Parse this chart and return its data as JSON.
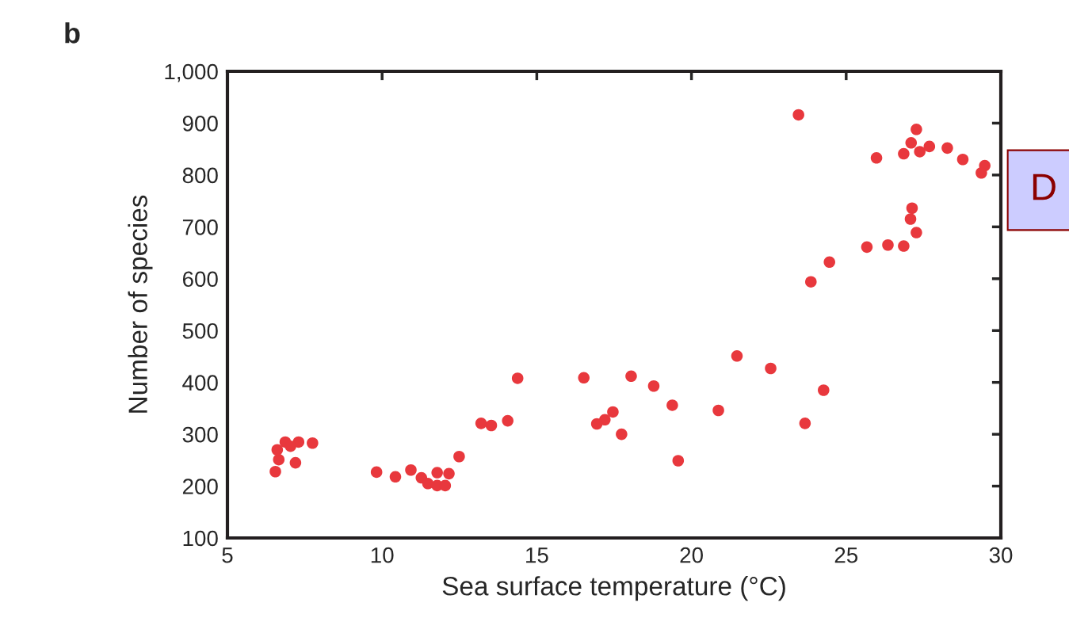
{
  "chart_data": {
    "type": "scatter",
    "title": "b",
    "xlabel": "Sea surface temperature (°C)",
    "ylabel": "Number of species",
    "x": [
      6.55,
      6.66,
      6.61,
      6.87,
      7.3,
      7.2,
      7.75,
      7.04,
      9.82,
      10.43,
      10.93,
      11.27,
      11.48,
      11.78,
      11.78,
      12.04,
      12.16,
      12.49,
      13.2,
      13.53,
      14.06,
      14.38,
      16.52,
      18.05,
      18.78,
      19.38,
      20.87,
      21.47,
      22.56,
      24.27,
      23.67,
      19.57,
      17.74,
      17.46,
      17.2,
      16.94,
      23.46,
      25.98,
      26.86,
      27.27,
      27.1,
      27.38,
      27.69,
      28.27,
      28.77,
      29.48,
      29.37,
      27.13,
      27.08,
      27.27,
      26.86,
      26.35,
      25.67,
      24.46,
      23.86
    ],
    "series": [
      {
        "color": "#e8383d",
        "values": [
          228,
          251,
          270,
          285,
          285,
          245,
          283,
          277,
          227,
          218,
          231,
          216,
          205,
          226,
          201,
          201,
          224,
          257,
          321,
          317,
          326,
          408,
          409,
          412,
          393,
          356,
          346,
          451,
          427,
          385,
          321,
          249,
          300,
          343,
          328,
          320,
          916,
          833,
          841,
          888,
          862,
          845,
          855,
          852,
          830,
          818,
          804,
          736,
          715,
          689,
          663,
          665,
          661,
          632,
          594
        ]
      }
    ],
    "marker": "circle",
    "grid": false,
    "xlim": [
      5,
      30
    ],
    "xticks": [
      5,
      10,
      15,
      20,
      25,
      30
    ],
    "ylim": [
      100,
      1000
    ],
    "yticks": [
      100,
      200,
      300,
      400,
      500,
      600,
      700,
      800,
      900,
      {
        "value": 1000,
        "label": "1,000"
      }
    ],
    "annotations": [
      "D"
    ]
  }
}
